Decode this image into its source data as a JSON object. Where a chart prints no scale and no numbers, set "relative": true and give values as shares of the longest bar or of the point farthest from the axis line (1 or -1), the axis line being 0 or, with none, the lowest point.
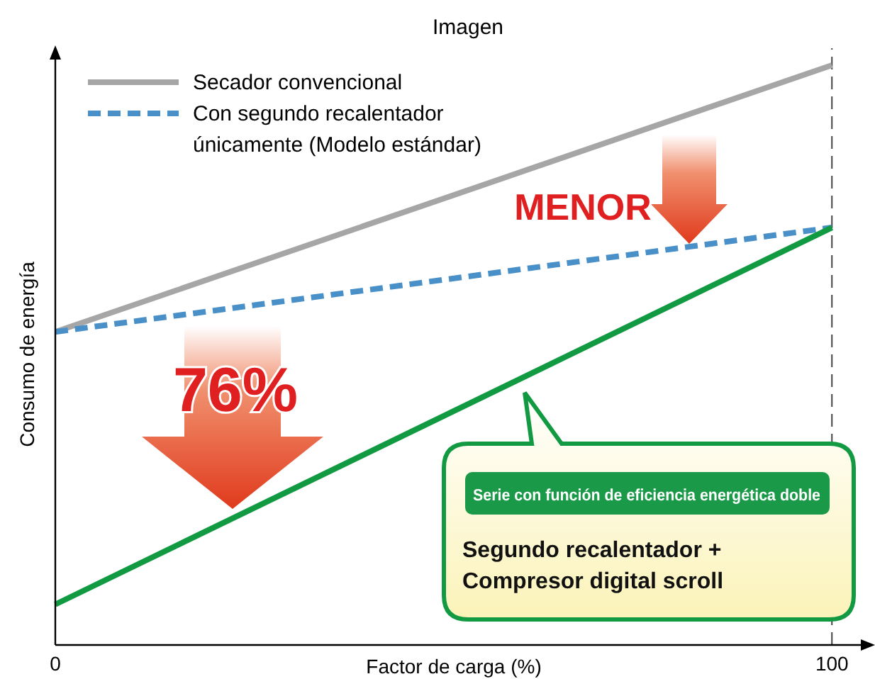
{
  "chart_data": {
    "type": "line",
    "title": "Imagen",
    "xlabel": "Factor de carga (%)",
    "ylabel": "Consumo de energía",
    "relative": true,
    "x": [
      0,
      100
    ],
    "xlim": [
      0,
      105
    ],
    "xticks": [
      0,
      100
    ],
    "tick_labels": "x",
    "legend": "top left",
    "grid": false,
    "marker": "none",
    "series": [
      {
        "name": "Secador convencional",
        "color": "#a6a6a6",
        "values": [
          0.54,
          1
        ],
        "line_style": "solid"
      },
      {
        "name": "Con segundo recalentador únicamente (Modelo estándar)",
        "color": "#4a90c8",
        "values": [
          0.54,
          0.72
        ],
        "line_style": "dashed"
      },
      {
        "color": "#129a43",
        "values": [
          0.07,
          0.72
        ],
        "line_style": "solid"
      }
    ],
    "ref_lines": [
      {
        "axis": "x",
        "value": 100,
        "color": "#444444",
        "line_style": "dashed"
      }
    ],
    "annotations": [
      "MENOR",
      "76%",
      "Serie con función de eficiencia energética doble",
      "Segundo recalentador + Compresor digital scroll"
    ]
  }
}
